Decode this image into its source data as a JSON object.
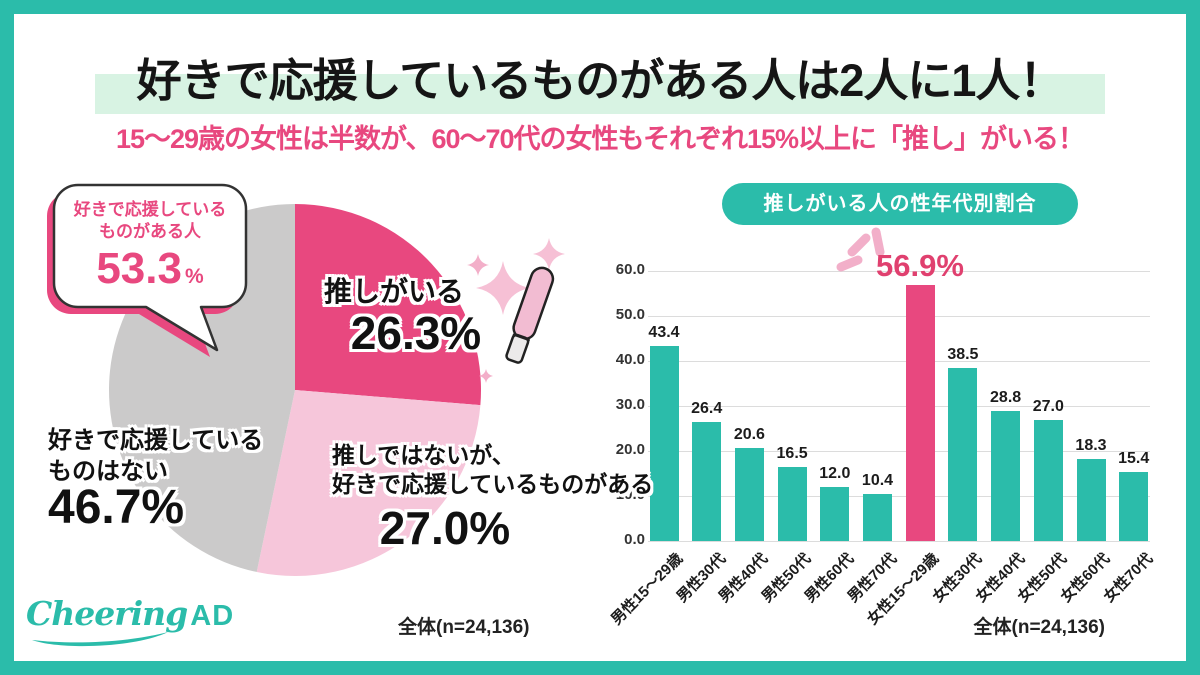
{
  "header": {
    "title": "好きで応援しているものがある人は2人に1人！",
    "subtitle": "15〜29歳の女性は半数が、60〜70代の女性もそれぞれ15%以上に「推し」がいる！"
  },
  "colors": {
    "frame_teal": "#2BBCAA",
    "title_highlight_mint": "#D8F3E3",
    "accent_pink": "#E8487F",
    "pale_pink": "#F2AFC9",
    "light_pink": "#F6C6DA",
    "pie_gray": "#CBCACA"
  },
  "chart_data": [
    {
      "type": "pie",
      "labels": [
        "推しがいる",
        "推しではないが、好きで応援しているものがある",
        "好きで応援しているものはない"
      ],
      "values": [
        26.3,
        27.0,
        46.7
      ],
      "colors": [
        "#E8487F",
        "#F6C6DA",
        "#CBCACA"
      ],
      "start_angle": "top",
      "direction": "clockwise",
      "callout": {
        "label_line1": "好きで応援している",
        "label_line2": "ものがある人",
        "value": "53.3",
        "unit": "%"
      },
      "slice_display": {
        "oshi": {
          "text": "推しがいる",
          "value": "26.3%"
        },
        "fan": {
          "line1": "推しではないが、",
          "line2": "好きで応援しているものがある",
          "value": "27.0%"
        },
        "none": {
          "line1": "好きで応援している",
          "line2": "ものはない",
          "value": "46.7%"
        }
      },
      "note": "全体(n=24,136)"
    },
    {
      "type": "bar",
      "title": "推しがいる人の性年代別割合",
      "categories": [
        "男性15〜29歳",
        "男性30代",
        "男性40代",
        "男性50代",
        "男性60代",
        "男性70代",
        "女性15〜29歳",
        "女性30代",
        "女性40代",
        "女性50代",
        "女性60代",
        "女性70代"
      ],
      "values": [
        43.4,
        26.4,
        20.6,
        16.5,
        12.0,
        10.4,
        56.9,
        38.5,
        28.8,
        27.0,
        18.3,
        15.4
      ],
      "highlight_index": 6,
      "highlight_label": "56.9%",
      "bar_color": "#2BBCAA",
      "highlight_color": "#E8487F",
      "ylim": [
        0,
        60
      ],
      "ytick_step": 10,
      "grid": true,
      "value_labels": true,
      "note": "全体(n=24,136)"
    }
  ],
  "icons": {
    "penlight": "penlight-icon",
    "sparkles": "sparkle-icon",
    "emphasis": "emphasis-lines-icon"
  },
  "logo": {
    "script": "Cheering",
    "suffix": "AD"
  }
}
